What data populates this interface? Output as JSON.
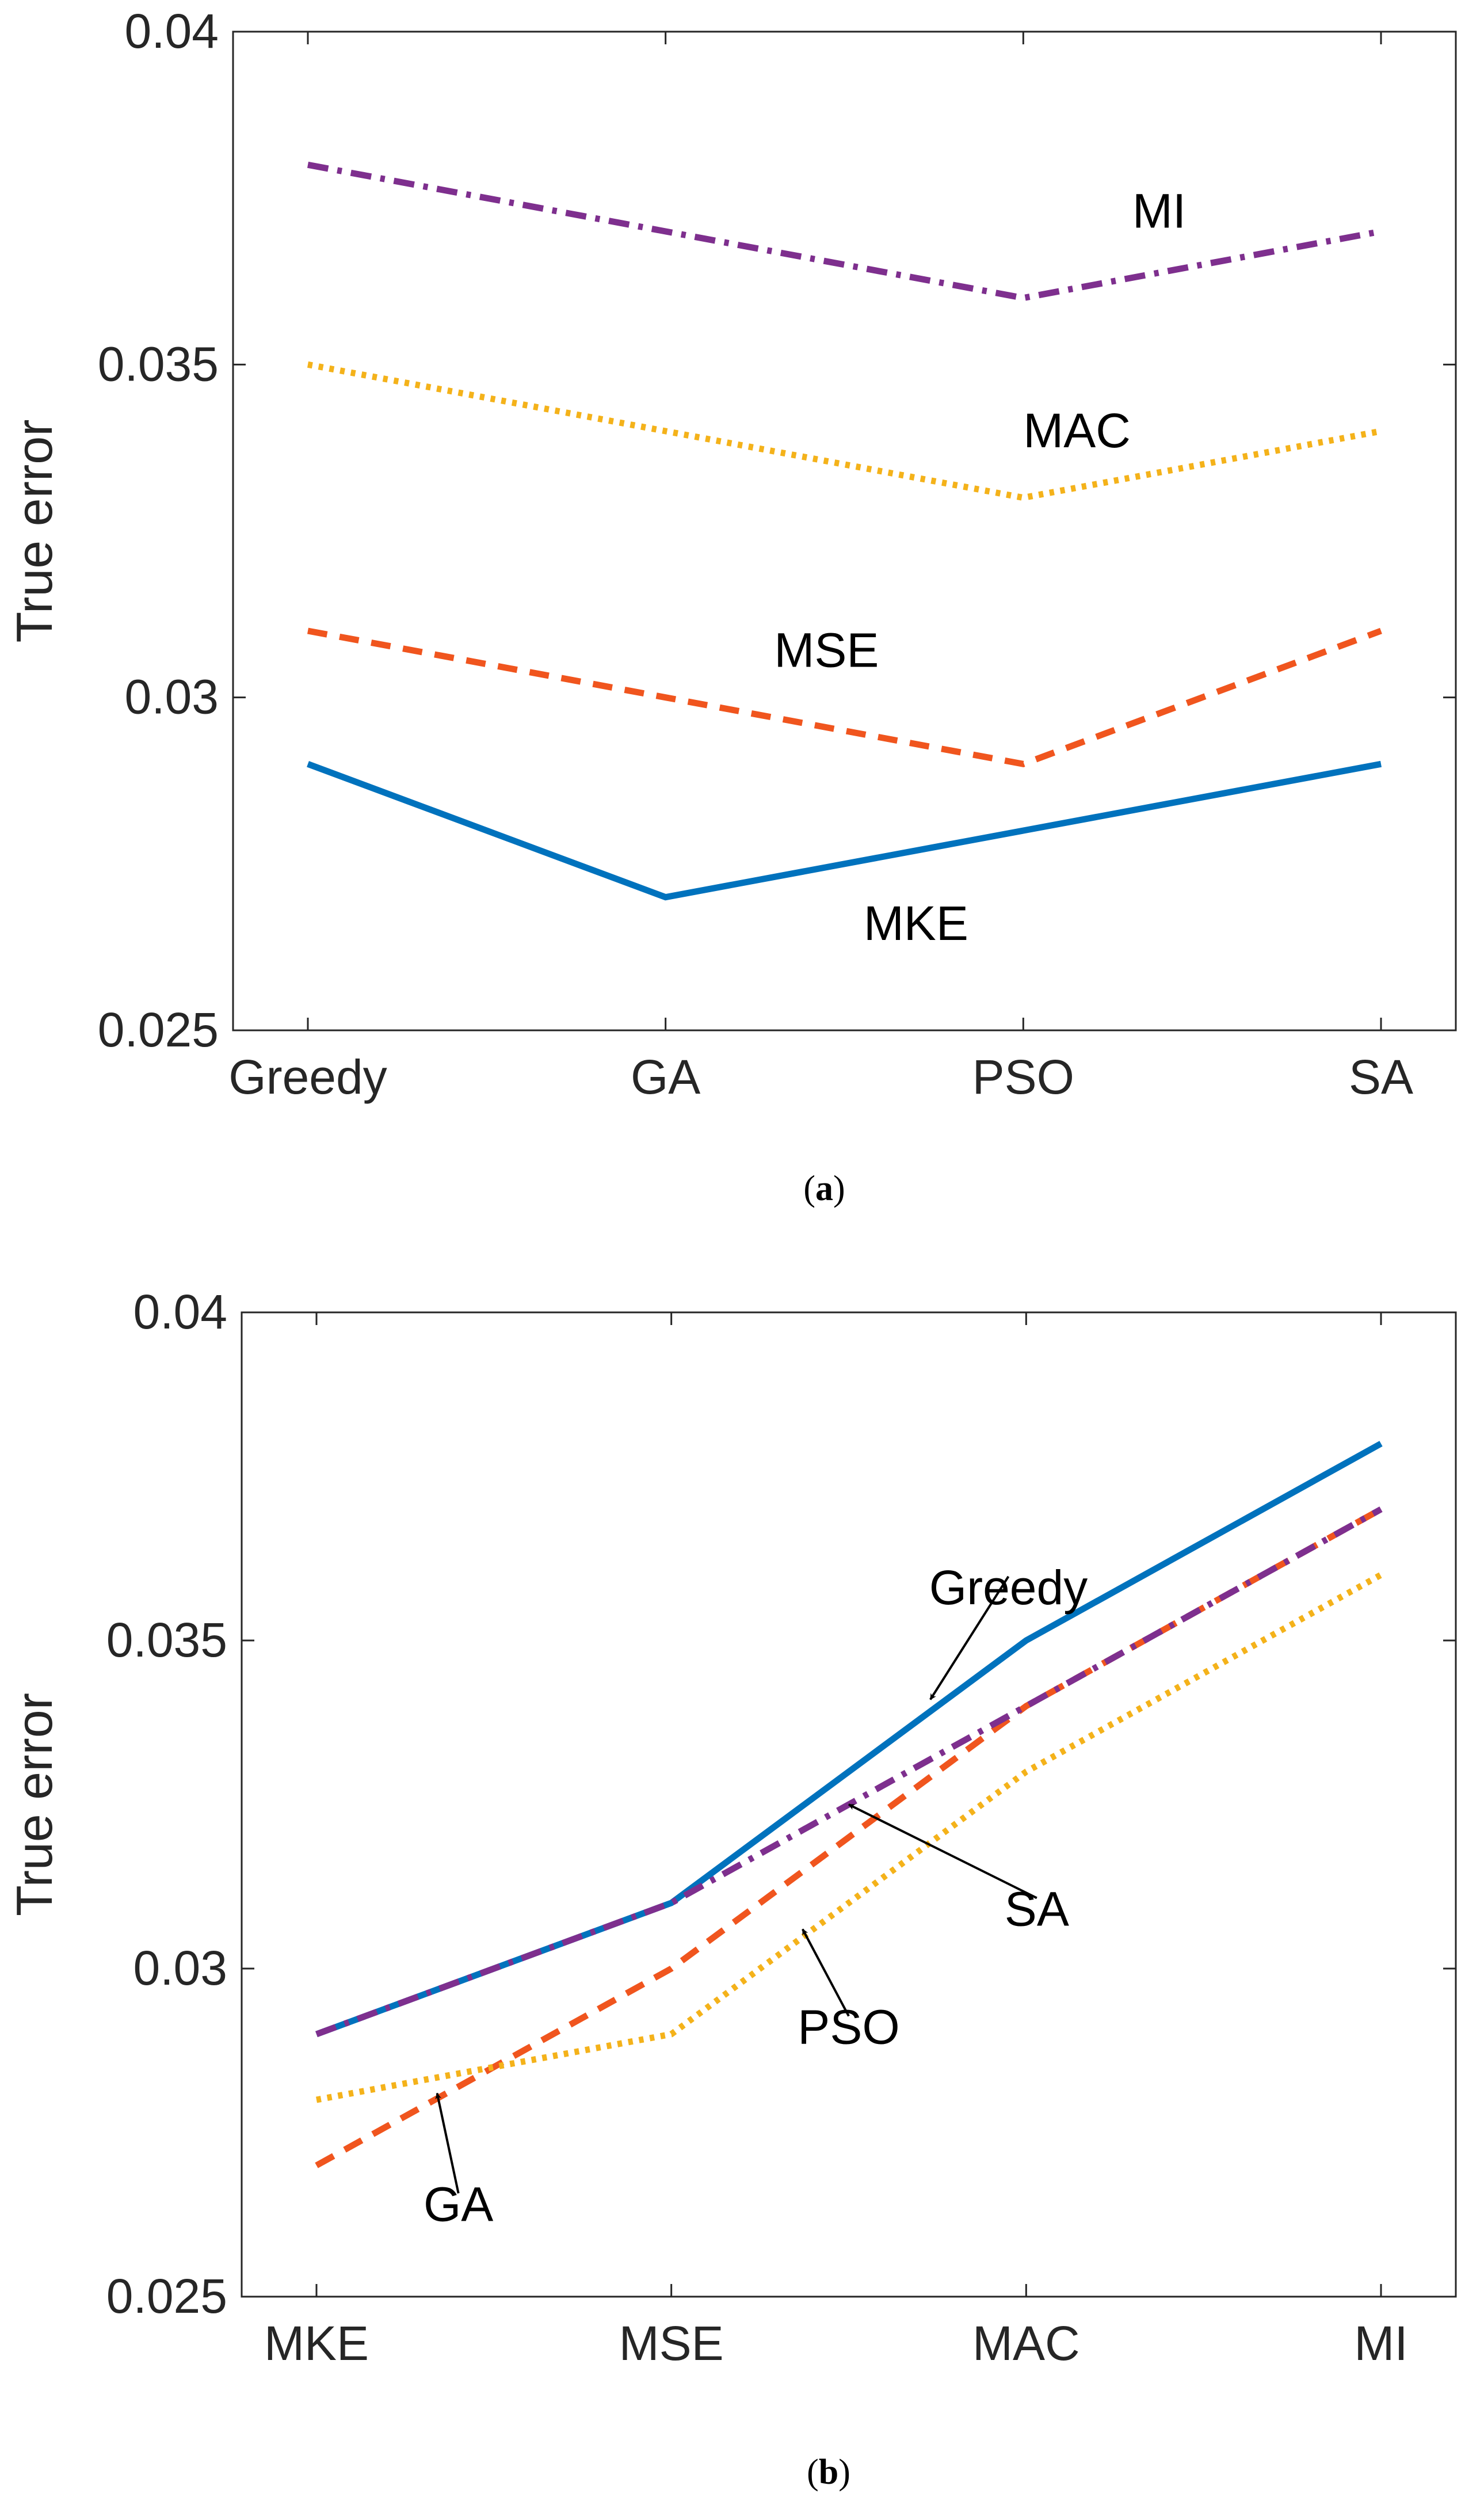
{
  "chart_data": [
    {
      "type": "line",
      "panel": "a",
      "caption_letter": "a",
      "categories": [
        "Greedy",
        "GA",
        "PSO",
        "SA"
      ],
      "ylabel": "True error",
      "ylim": [
        0.025,
        0.04
      ],
      "yticks": [
        0.025,
        0.03,
        0.035,
        0.04
      ],
      "ytick_labels": [
        "0.025",
        "0.03",
        "0.035",
        "0.04"
      ],
      "series": [
        {
          "name": "MKE",
          "style": "solid",
          "color": "#0072BD",
          "values": [
            0.029,
            0.027,
            0.028,
            0.029
          ]
        },
        {
          "name": "MSE",
          "style": "dashed",
          "color": "#F0551E",
          "values": [
            0.031,
            0.03,
            0.029,
            0.031
          ]
        },
        {
          "name": "MAC",
          "style": "dotted",
          "color": "#F4B21A",
          "values": [
            0.035,
            0.034,
            0.033,
            0.034
          ]
        },
        {
          "name": "MI",
          "style": "dashdot",
          "color": "#7E2F8E",
          "values": [
            0.038,
            0.037,
            0.036,
            0.037
          ]
        }
      ],
      "annotations": [
        {
          "text": "MI",
          "x": 2.38,
          "y": 0.0373
        },
        {
          "text": "MAC",
          "x": 2.15,
          "y": 0.034
        },
        {
          "text": "MSE",
          "x": 1.45,
          "y": 0.0307
        },
        {
          "text": "MKE",
          "x": 1.7,
          "y": 0.0266
        }
      ]
    },
    {
      "type": "line",
      "panel": "b",
      "caption_letter": "b",
      "categories": [
        "MKE",
        "MSE",
        "MAC",
        "MI"
      ],
      "ylabel": "True error",
      "ylim": [
        0.025,
        0.04
      ],
      "yticks": [
        0.025,
        0.03,
        0.035,
        0.04
      ],
      "ytick_labels": [
        "0.025",
        "0.03",
        "0.035",
        "0.04"
      ],
      "series": [
        {
          "name": "Greedy",
          "style": "solid",
          "color": "#0072BD",
          "values": [
            0.029,
            0.031,
            0.035,
            0.038
          ]
        },
        {
          "name": "GA",
          "style": "dashed",
          "color": "#F0551E",
          "values": [
            0.027,
            0.03,
            0.034,
            0.037
          ]
        },
        {
          "name": "PSO",
          "style": "dotted",
          "color": "#F4B21A",
          "values": [
            0.028,
            0.029,
            0.033,
            0.036
          ]
        },
        {
          "name": "SA",
          "style": "dashdot",
          "color": "#7E2F8E",
          "values": [
            0.029,
            0.031,
            0.034,
            0.037
          ]
        }
      ],
      "annotations": [
        {
          "text": "Greedy",
          "x": 1.95,
          "y": 0.0358,
          "arrow_to": [
            1.73,
            0.0341
          ]
        },
        {
          "text": "SA",
          "x": 2.03,
          "y": 0.0309,
          "arrow_to": [
            1.5,
            0.0325
          ]
        },
        {
          "text": "PSO",
          "x": 1.5,
          "y": 0.0291,
          "arrow_to": [
            1.37,
            0.0306
          ]
        },
        {
          "text": "GA",
          "x": 0.4,
          "y": 0.0264,
          "arrow_to": [
            0.34,
            0.0281
          ]
        }
      ]
    }
  ]
}
